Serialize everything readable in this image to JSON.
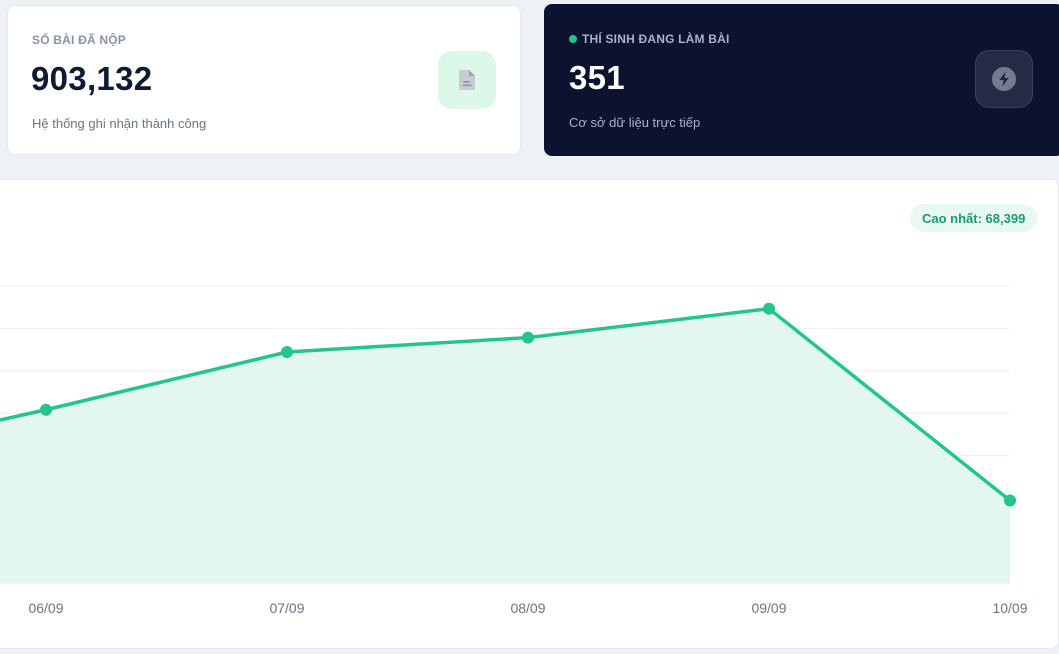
{
  "stats": {
    "submissions": {
      "label": "SỐ BÀI ĐÃ NỘP",
      "value": "903,132",
      "subtitle": "Hệ thống ghi nhận thành công",
      "icon": "document-icon",
      "accent": "#22c58b"
    },
    "live": {
      "label": "THÍ SINH ĐANG LÀM BÀI",
      "value": "351",
      "subtitle": "Cơ sở dữ liệu trực tiếp",
      "icon": "lightning-icon",
      "status_color": "#22c58b"
    }
  },
  "chart": {
    "peak_label": "Cao nhất: 68,399"
  },
  "chart_data": {
    "type": "area",
    "categories": [
      "06/09",
      "07/09",
      "08/09",
      "09/09",
      "10/09"
    ],
    "values": [
      42000,
      56000,
      59500,
      66500,
      20000
    ],
    "visible_domain": [
      0,
      68399
    ],
    "ylim": [
      0,
      72000
    ],
    "line_color": "#22c58b",
    "fill_color": "#e3f7ee",
    "grid": true,
    "xlabel": "",
    "ylabel": ""
  }
}
